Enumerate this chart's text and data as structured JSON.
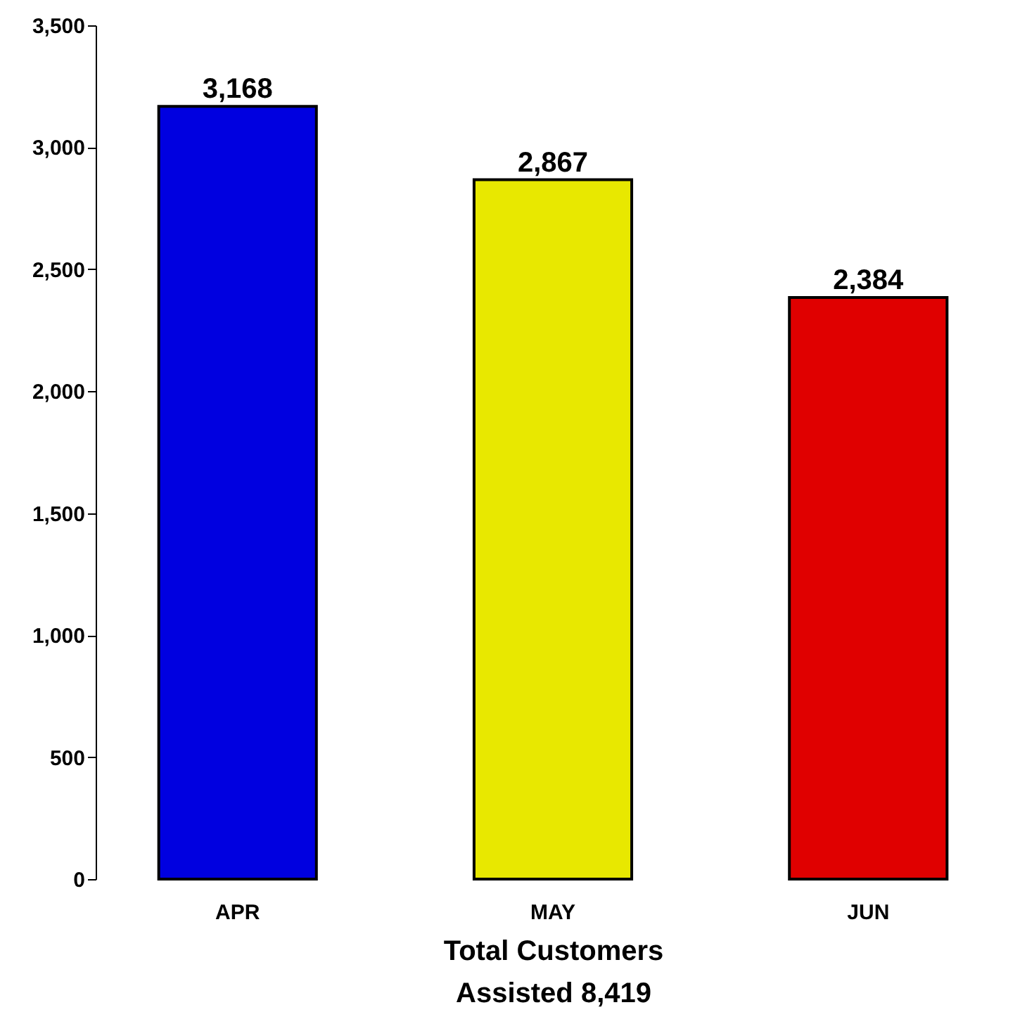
{
  "chart_data": {
    "type": "bar",
    "xlabel": "Total Customers\nAssisted 8,419",
    "categories": [
      "APR",
      "MAY",
      "JUN"
    ],
    "values": [
      3168,
      2867,
      2384
    ],
    "value_labels": [
      "3,168",
      "2,867",
      "2,384"
    ],
    "colors": [
      "#0000e0",
      "#e8e800",
      "#e00000"
    ],
    "ylim": [
      0,
      3500
    ],
    "yticks": [
      0,
      500,
      {
        "value": 1000,
        "label": "1,000"
      },
      {
        "value": 1500,
        "label": "1,500"
      },
      {
        "value": 2000,
        "label": "2,000"
      },
      {
        "value": 2500,
        "label": "2,500"
      },
      {
        "value": 3000,
        "label": "3,000"
      },
      {
        "value": 3500,
        "label": "3,500"
      }
    ],
    "grid": false
  }
}
